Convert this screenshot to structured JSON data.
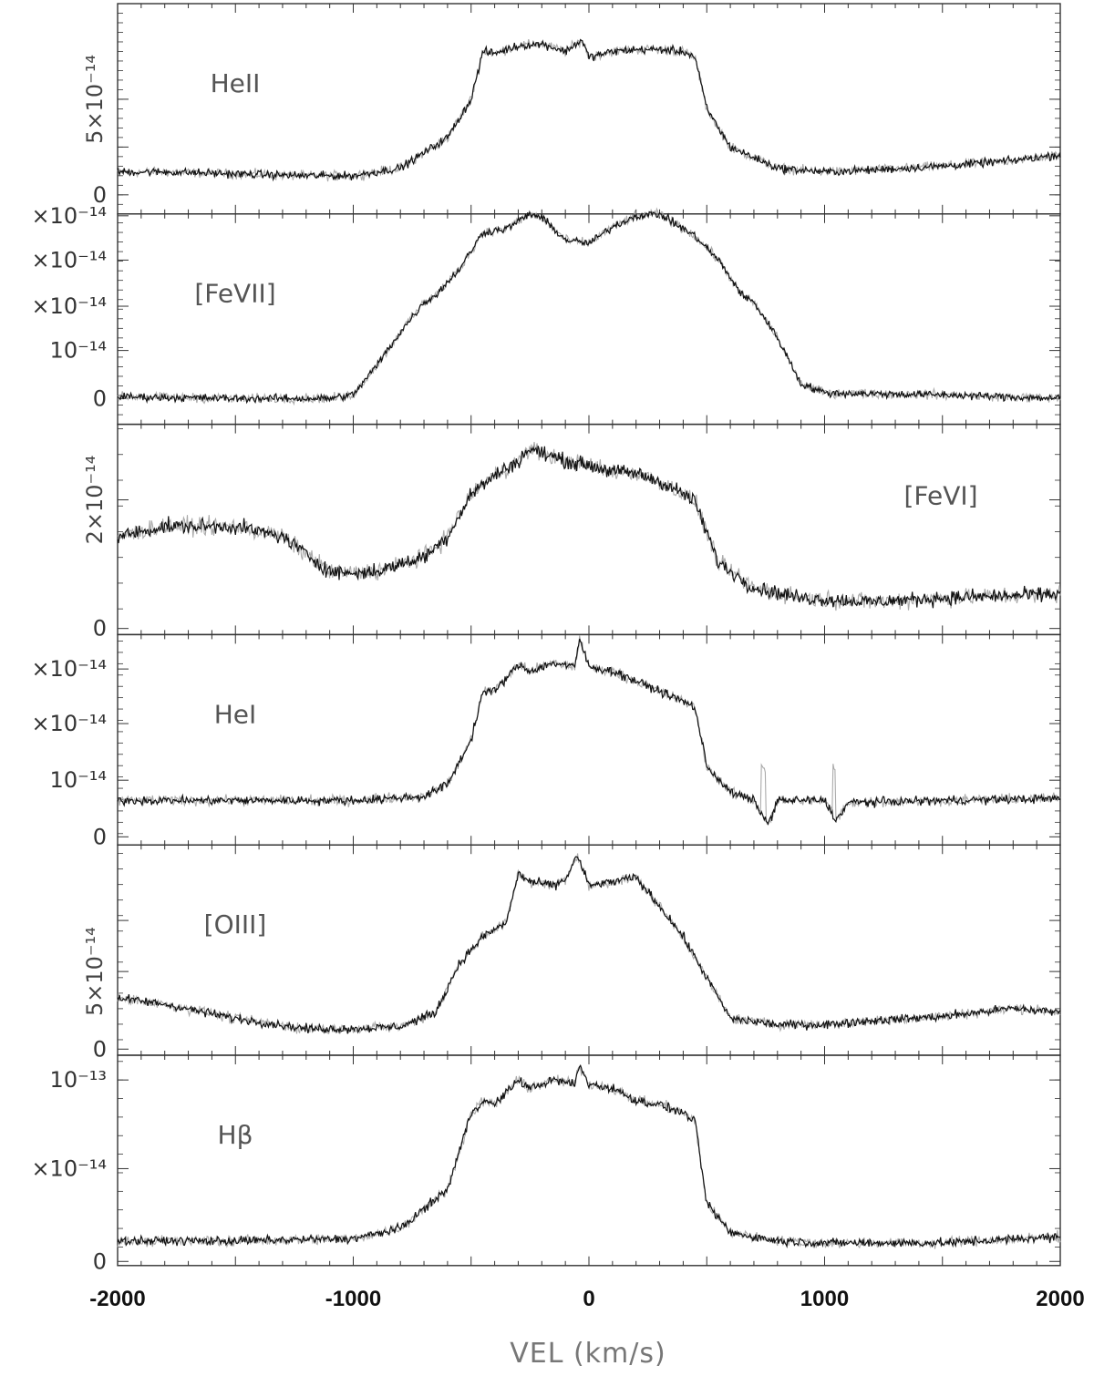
{
  "chart_data": {
    "type": "line",
    "xlabel": "VEL (km/s)",
    "xlim": [
      -2000,
      2000
    ],
    "x_ticks": [
      "-2000",
      "-1000",
      "0",
      "1000",
      "2000"
    ],
    "colors": {
      "series_1": "#111111",
      "series_2": "#aaaaaa",
      "axes": "#333333"
    },
    "panels": [
      {
        "label": "HeII",
        "ylim": [
          -0.1,
          1.0
        ],
        "y_ticks": [
          {
            "value": 0.0,
            "text": "0"
          },
          {
            "value": 0.25,
            "text": ""
          },
          {
            "value": 0.5,
            "text": "5×10⁻¹⁴"
          }
        ],
        "y_ticks_rotated": true,
        "label_pos": "left",
        "profile": {
          "x": [
            -2000,
            -1800,
            -1500,
            -1200,
            -1000,
            -800,
            -600,
            -500,
            -450,
            -400,
            -300,
            -200,
            -100,
            -30,
            0,
            100,
            200,
            300,
            400,
            450,
            500,
            600,
            800,
            1000,
            1200,
            1500,
            1800,
            2000
          ],
          "y": [
            0.12,
            0.12,
            0.11,
            0.1,
            0.1,
            0.14,
            0.3,
            0.5,
            0.75,
            0.74,
            0.78,
            0.79,
            0.75,
            0.81,
            0.72,
            0.75,
            0.76,
            0.76,
            0.75,
            0.72,
            0.45,
            0.25,
            0.14,
            0.12,
            0.13,
            0.15,
            0.18,
            0.21
          ]
        }
      },
      {
        "label": "[FeVII]",
        "ylim": [
          -0.14,
          1.0
        ],
        "y_ticks": [
          {
            "value": 0.0,
            "text": "0"
          },
          {
            "value": 0.26,
            "text": "10⁻¹⁴"
          },
          {
            "value": 0.5,
            "text": "×10⁻¹⁴"
          },
          {
            "value": 0.75,
            "text": "×10⁻¹⁴"
          },
          {
            "value": 0.99,
            "text": "×10⁻¹⁴"
          }
        ],
        "label_pos": "left",
        "profile": {
          "x": [
            -2000,
            -1500,
            -1100,
            -1000,
            -900,
            -800,
            -700,
            -650,
            -550,
            -450,
            -350,
            -250,
            -200,
            -100,
            0,
            100,
            200,
            300,
            350,
            450,
            550,
            650,
            700,
            800,
            900,
            1000,
            1500,
            2000
          ],
          "y": [
            0.01,
            0.0,
            0.0,
            0.02,
            0.18,
            0.36,
            0.52,
            0.56,
            0.7,
            0.9,
            0.92,
            1.0,
            0.98,
            0.86,
            0.84,
            0.93,
            0.99,
            1.0,
            0.96,
            0.88,
            0.75,
            0.56,
            0.52,
            0.33,
            0.08,
            0.03,
            0.02,
            0.0
          ]
        }
      },
      {
        "label": "[FeVI]",
        "ylim": [
          -0.03,
          1.0
        ],
        "y_ticks": [
          {
            "value": 0.0,
            "text": "0"
          },
          {
            "value": 0.63,
            "text": "2×10⁻¹⁴"
          }
        ],
        "y_ticks_rotated": true,
        "label_pos": "right",
        "profile": {
          "x": [
            -2000,
            -1800,
            -1500,
            -1300,
            -1100,
            -1000,
            -900,
            -700,
            -600,
            -500,
            -400,
            -300,
            -250,
            -100,
            0,
            100,
            200,
            300,
            400,
            450,
            550,
            700,
            900,
            1200,
            1500,
            1800,
            2000
          ],
          "y": [
            0.45,
            0.5,
            0.5,
            0.45,
            0.28,
            0.27,
            0.28,
            0.35,
            0.45,
            0.66,
            0.75,
            0.82,
            0.88,
            0.82,
            0.8,
            0.77,
            0.76,
            0.72,
            0.66,
            0.62,
            0.32,
            0.2,
            0.15,
            0.13,
            0.15,
            0.16,
            0.17
          ]
        }
      },
      {
        "label": "HeI",
        "ylim": [
          -0.04,
          1.0
        ],
        "y_ticks": [
          {
            "value": 0.0,
            "text": "0"
          },
          {
            "value": 0.28,
            "text": "10⁻¹⁴"
          },
          {
            "value": 0.56,
            "text": "×10⁻¹⁴"
          },
          {
            "value": 0.83,
            "text": "×10⁻¹⁴"
          }
        ],
        "label_pos": "left",
        "profile": {
          "x": [
            -2000,
            -1500,
            -1000,
            -700,
            -600,
            -500,
            -450,
            -400,
            -300,
            -250,
            -150,
            -60,
            -40,
            0,
            100,
            200,
            300,
            400,
            450,
            500,
            600,
            700,
            760,
            800,
            1000,
            1050,
            1100,
            1500,
            2000
          ],
          "y": [
            0.18,
            0.18,
            0.18,
            0.2,
            0.26,
            0.48,
            0.72,
            0.72,
            0.85,
            0.82,
            0.86,
            0.84,
            0.98,
            0.84,
            0.82,
            0.77,
            0.72,
            0.67,
            0.64,
            0.35,
            0.22,
            0.18,
            0.06,
            0.18,
            0.18,
            0.08,
            0.17,
            0.18,
            0.19
          ]
        }
      },
      {
        "label": "[OIII]",
        "ylim": [
          -0.03,
          1.0
        ],
        "y_ticks": [
          {
            "value": 0.0,
            "text": "0"
          },
          {
            "value": 0.38,
            "text": "5×10⁻¹⁴"
          },
          {
            "value": 0.63,
            "text": ""
          }
        ],
        "y_ticks_rotated": true,
        "label_pos": "left",
        "profile": {
          "x": [
            -2000,
            -1800,
            -1500,
            -1200,
            -1000,
            -800,
            -650,
            -550,
            -450,
            -350,
            -300,
            -250,
            -150,
            -100,
            -50,
            0,
            100,
            200,
            300,
            400,
            500,
            600,
            800,
            1000,
            1200,
            1500,
            1800,
            2000
          ],
          "y": [
            0.25,
            0.22,
            0.15,
            0.1,
            0.1,
            0.11,
            0.18,
            0.42,
            0.55,
            0.62,
            0.86,
            0.82,
            0.8,
            0.83,
            0.95,
            0.8,
            0.82,
            0.84,
            0.7,
            0.55,
            0.35,
            0.15,
            0.12,
            0.12,
            0.14,
            0.16,
            0.2,
            0.18
          ]
        }
      },
      {
        "label": "Hβ",
        "ylim": [
          -0.02,
          1.0
        ],
        "y_ticks": [
          {
            "value": 0.0,
            "text": "0"
          },
          {
            "value": 0.45,
            "text": "×10⁻¹⁴"
          },
          {
            "value": 0.88,
            "text": "10⁻¹³"
          }
        ],
        "label_pos": "left",
        "profile": {
          "x": [
            -2000,
            -1500,
            -1000,
            -800,
            -600,
            -500,
            -450,
            -400,
            -300,
            -250,
            -150,
            -60,
            -40,
            0,
            100,
            200,
            300,
            400,
            450,
            500,
            600,
            800,
            1000,
            1500,
            2000
          ],
          "y": [
            0.1,
            0.1,
            0.11,
            0.16,
            0.35,
            0.72,
            0.78,
            0.76,
            0.88,
            0.84,
            0.88,
            0.86,
            0.95,
            0.86,
            0.84,
            0.78,
            0.76,
            0.72,
            0.68,
            0.28,
            0.14,
            0.1,
            0.09,
            0.09,
            0.12
          ]
        }
      }
    ]
  }
}
